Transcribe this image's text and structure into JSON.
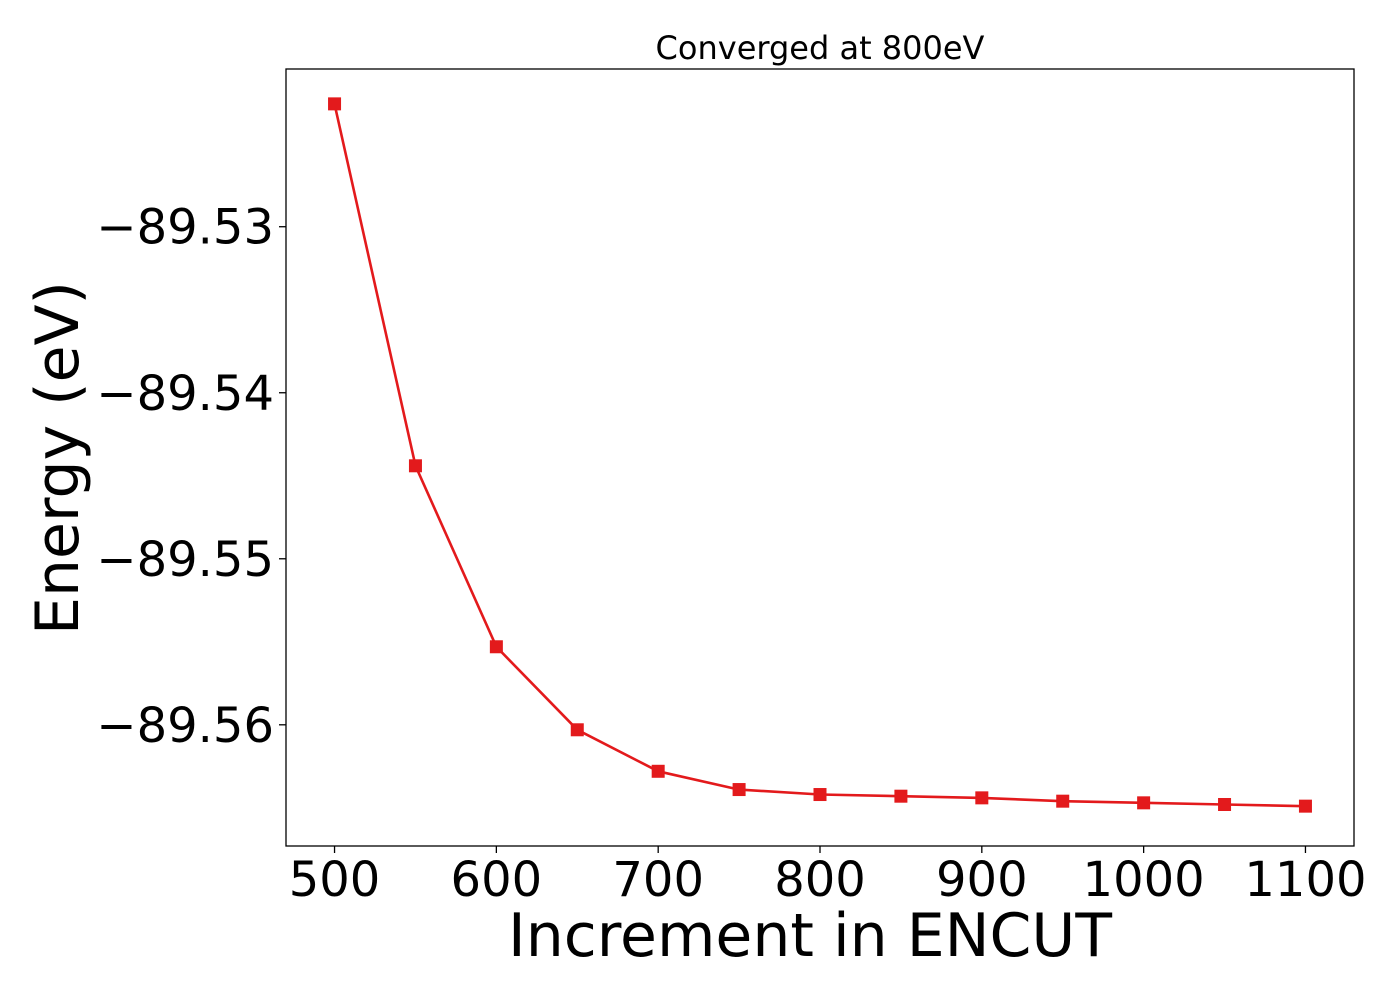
{
  "chart_data": {
    "type": "line",
    "title": "Converged at 800eV",
    "xlabel": "Increment in ENCUT",
    "ylabel": "Energy (eV)",
    "x": [
      500,
      550,
      600,
      650,
      700,
      750,
      800,
      850,
      900,
      950,
      1000,
      1050,
      1100
    ],
    "series": [
      {
        "name": "Energy",
        "color": "#e31a1c",
        "marker": "square",
        "values": [
          -89.5226,
          -89.5444,
          -89.5553,
          -89.5603,
          -89.5628,
          -89.5639,
          -89.5642,
          -89.5643,
          -89.5644,
          -89.5646,
          -89.5647,
          -89.5648,
          -89.5649
        ]
      }
    ],
    "xlim": [
      470,
      1130
    ],
    "ylim": [
      -89.5673,
      -89.5205
    ],
    "xticks": [
      500,
      600,
      700,
      800,
      900,
      1000,
      1100
    ],
    "xtick_labels": [
      "500",
      "600",
      "700",
      "800",
      "900",
      "1000",
      "1100"
    ],
    "yticks": [
      -89.53,
      -89.54,
      -89.55,
      -89.56
    ],
    "ytick_labels": [
      "−89.53",
      "−89.54",
      "−89.55",
      "−89.56"
    ],
    "grid": false,
    "legend": "none"
  }
}
